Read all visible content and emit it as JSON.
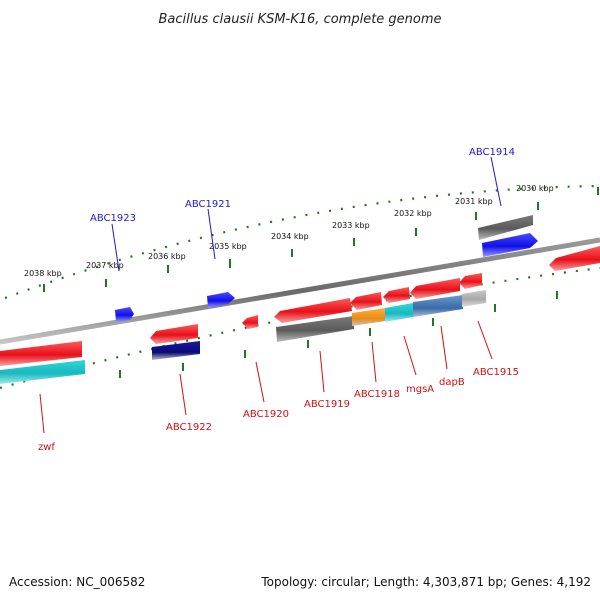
{
  "title": "Bacillus clausii KSM-K16, complete genome",
  "footer": {
    "accession": "Accession: NC_006582",
    "summary": "Topology: circular; Length: 4,303,871 bp; Genes: 4,192"
  },
  "ticks": [
    "2038 kbp",
    "2037 kbp",
    "2036 kbp",
    "2035 kbp",
    "2034 kbp",
    "2033 kbp",
    "2032 kbp",
    "2031 kbp",
    "2030 kbp"
  ],
  "genes_upper": [
    "ABC1923",
    "ABC1921",
    "ABC1914"
  ],
  "genes_lower": [
    "zwf",
    "ABC1922",
    "ABC1920",
    "ABC1919",
    "ABC1918",
    "mgsA",
    "dapB",
    "ABC1915"
  ],
  "colors": {
    "red": "#e8101a",
    "blue": "#1010e8",
    "cyan": "#18c8c8",
    "gray": "#6a6a6a",
    "light_gray": "#b8b8b8",
    "navy": "#0a0a78",
    "orange": "#f09a18",
    "steel_blue": "#4a7ab8",
    "axis_green": "#1f7a1f",
    "backbone": "#777777"
  }
}
